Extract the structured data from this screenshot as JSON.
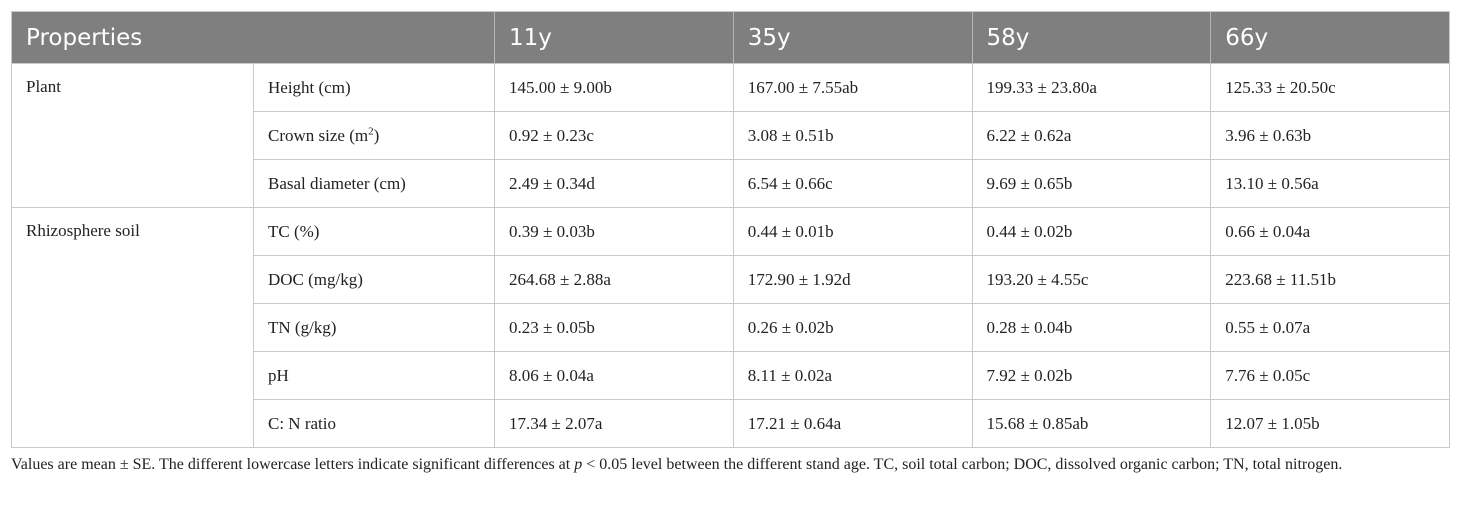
{
  "table": {
    "headers": [
      "Properties",
      "11y",
      "35y",
      "58y",
      "66y"
    ],
    "groups": [
      {
        "label": "Plant",
        "rows": [
          {
            "property": "Height (cm)",
            "values": [
              "145.00 ± 9.00b",
              "167.00 ± 7.55ab",
              "199.33 ± 23.80a",
              "125.33 ± 20.50c"
            ]
          },
          {
            "property_prefix": "Crown size (m",
            "property_sup": "2",
            "property_suffix": ")",
            "values": [
              "0.92 ± 0.23c",
              "3.08 ± 0.51b",
              "6.22 ± 0.62a",
              "3.96 ± 0.63b"
            ]
          },
          {
            "property": "Basal diameter (cm)",
            "values": [
              "2.49 ± 0.34d",
              "6.54 ± 0.66c",
              "9.69 ± 0.65b",
              "13.10 ± 0.56a"
            ]
          }
        ]
      },
      {
        "label": "Rhizosphere soil",
        "rows": [
          {
            "property": "TC (%)",
            "values": [
              "0.39 ± 0.03b",
              "0.44 ± 0.01b",
              "0.44 ± 0.02b",
              "0.66 ± 0.04a"
            ]
          },
          {
            "property": "DOC (mg/kg)",
            "values": [
              "264.68 ± 2.88a",
              "172.90 ± 1.92d",
              "193.20 ± 4.55c",
              "223.68 ± 11.51b"
            ]
          },
          {
            "property": "TN (g/kg)",
            "values": [
              "0.23 ± 0.05b",
              "0.26 ± 0.02b",
              "0.28 ± 0.04b",
              "0.55 ± 0.07a"
            ]
          },
          {
            "property": "pH",
            "values": [
              "8.06 ± 0.04a",
              "8.11 ± 0.02a",
              "7.92 ± 0.02b",
              "7.76 ± 0.05c"
            ]
          },
          {
            "property": "C: N ratio",
            "values": [
              "17.34 ± 2.07a",
              "17.21 ± 0.64a",
              "15.68 ± 0.85ab",
              "12.07 ± 1.05b"
            ]
          }
        ]
      }
    ]
  },
  "footnote": {
    "part1": "Values are mean ± SE. The different lowercase letters indicate significant differences at ",
    "italic": "p",
    "part2": " < 0.05 level between the different stand age. TC, soil total carbon; DOC, dissolved organic carbon; TN, total nitrogen."
  }
}
